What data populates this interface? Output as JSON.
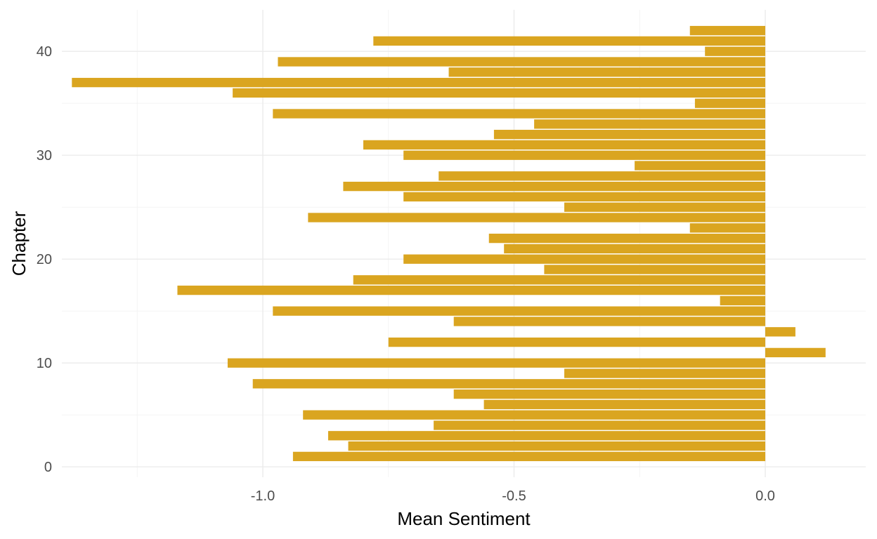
{
  "chart_data": {
    "type": "bar",
    "orientation": "horizontal",
    "title": "",
    "xlabel": "Mean Sentiment",
    "ylabel": "Chapter",
    "xlim": [
      -1.4,
      0.2
    ],
    "ylim": [
      -1,
      44
    ],
    "x_ticks": [
      -1.0,
      -0.5,
      0.0
    ],
    "x_tick_labels": [
      "-1.0",
      "-0.5",
      "0.0"
    ],
    "y_ticks": [
      0,
      10,
      20,
      30,
      40
    ],
    "y_tick_labels": [
      "0",
      "10",
      "20",
      "30",
      "40"
    ],
    "grid": true,
    "legend": "none",
    "bar_color": "#DAA520",
    "categories": [
      1,
      2,
      3,
      4,
      5,
      6,
      7,
      8,
      9,
      10,
      11,
      12,
      13,
      14,
      15,
      16,
      17,
      18,
      19,
      20,
      21,
      22,
      23,
      24,
      25,
      26,
      27,
      28,
      29,
      30,
      31,
      32,
      33,
      34,
      35,
      36,
      37,
      38,
      39,
      40,
      41,
      42
    ],
    "values": [
      -0.94,
      -0.83,
      -0.87,
      -0.66,
      -0.92,
      -0.56,
      -0.62,
      -1.02,
      -0.4,
      -1.07,
      0.12,
      -0.75,
      0.06,
      -0.62,
      -0.98,
      -0.09,
      -1.17,
      -0.82,
      -0.44,
      -0.72,
      -0.52,
      -0.55,
      -0.15,
      -0.91,
      -0.4,
      -0.72,
      -0.84,
      -0.65,
      -0.26,
      -0.72,
      -0.8,
      -0.54,
      -0.46,
      -0.98,
      -0.14,
      -1.06,
      -1.38,
      -0.63,
      -0.97,
      -0.12,
      -0.78,
      -0.15
    ]
  }
}
